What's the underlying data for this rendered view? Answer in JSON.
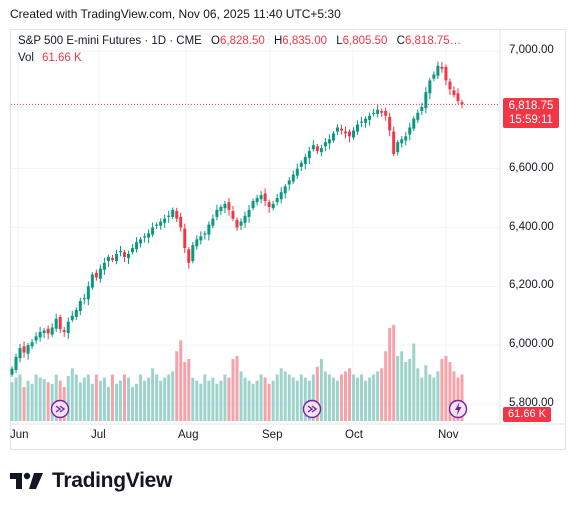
{
  "header": {
    "created": "Created with TradingView.com, Nov 06, 2025 11:40 UTC+5:30"
  },
  "legend": {
    "symbol": "S&P 500 E-mini Futures · 1D · CME",
    "o_label": "O",
    "o_value": "6,828.50",
    "h_label": "H",
    "h_value": "6,835.00",
    "l_label": "L",
    "l_value": "6,805.50",
    "c_label": "C",
    "c_value": "6,818.75…",
    "vol_label": "Vol",
    "vol_value": "61.66 K"
  },
  "price_scale": {
    "last_price": "6,818.75",
    "countdown": "15:59:11",
    "vol_tag": "61.66 K"
  },
  "brand": {
    "name": "TradingView"
  },
  "colors": {
    "up": "#089981",
    "down": "#f23645",
    "up_vol": "#9ed3cb",
    "down_vol": "#f5a3a9",
    "event": "#7b1fa2"
  },
  "events": [
    "dividend-icon",
    "dividend-icon",
    "lightning-icon"
  ],
  "chart_data": {
    "type": "candlestick",
    "x_ticks": [
      "Jun",
      "Jul",
      "Aug",
      "Sep",
      "Oct",
      "Nov"
    ],
    "y_ticks": [
      "7,000.00",
      "6,800.00",
      "6,600.00",
      "6,400.00",
      "6,200.00",
      "6,000.00",
      "5,800.00"
    ],
    "ylim": [
      5780,
      7080
    ],
    "last_price": 6818.75,
    "grid": true,
    "closes": [
      5920,
      5960,
      5990,
      5975,
      6000,
      6010,
      6030,
      6045,
      6050,
      6040,
      6060,
      6090,
      6055,
      6045,
      6080,
      6100,
      6120,
      6150,
      6160,
      6200,
      6240,
      6230,
      6260,
      6280,
      6300,
      6290,
      6310,
      6320,
      6300,
      6310,
      6330,
      6350,
      6360,
      6370,
      6380,
      6400,
      6410,
      6420,
      6430,
      6440,
      6460,
      6430,
      6400,
      6330,
      6280,
      6340,
      6360,
      6370,
      6380,
      6410,
      6430,
      6460,
      6470,
      6480,
      6460,
      6430,
      6400,
      6420,
      6440,
      6460,
      6490,
      6500,
      6510,
      6490,
      6470,
      6480,
      6500,
      6520,
      6540,
      6560,
      6580,
      6600,
      6620,
      6640,
      6660,
      6680,
      6660,
      6670,
      6690,
      6700,
      6720,
      6740,
      6730,
      6720,
      6710,
      6730,
      6750,
      6760,
      6770,
      6780,
      6790,
      6800,
      6790,
      6780,
      6730,
      6650,
      6690,
      6700,
      6710,
      6740,
      6770,
      6790,
      6810,
      6860,
      6900,
      6920,
      6950,
      6940,
      6900,
      6870,
      6850,
      6830,
      6818.75
    ],
    "volumes": [
      25,
      28,
      30,
      22,
      26,
      24,
      30,
      28,
      27,
      25,
      24,
      30,
      26,
      22,
      29,
      34,
      30,
      25,
      28,
      30,
      24,
      30,
      26,
      28,
      22,
      30,
      24,
      26,
      30,
      28,
      22,
      24,
      30,
      26,
      28,
      34,
      30,
      26,
      28,
      30,
      32,
      45,
      52,
      38,
      40,
      28,
      26,
      24,
      30,
      26,
      28,
      24,
      26,
      30,
      28,
      40,
      42,
      32,
      28,
      26,
      24,
      26,
      30,
      28,
      24,
      26,
      30,
      34,
      32,
      30,
      28,
      26,
      30,
      28,
      26,
      30,
      35,
      40,
      32,
      30,
      28,
      26,
      30,
      32,
      34,
      30,
      28,
      30,
      26,
      28,
      30,
      32,
      34,
      45,
      60,
      62,
      42,
      45,
      38,
      40,
      50,
      34,
      28,
      36,
      30,
      28,
      32,
      40,
      42,
      38,
      32,
      28,
      30
    ]
  }
}
